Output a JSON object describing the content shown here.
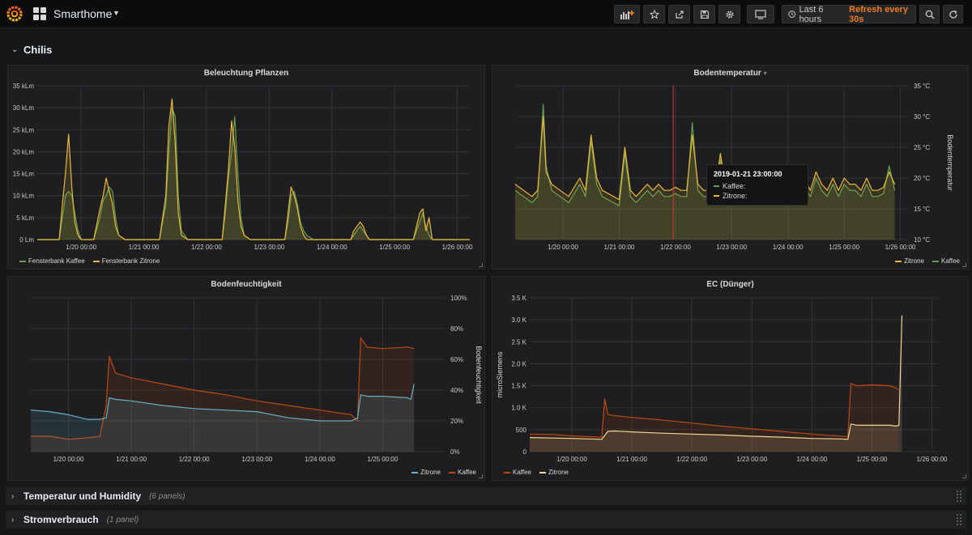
{
  "header": {
    "dashboard_title": "Smarthome",
    "time_range": "Last 6 hours",
    "refresh": "Refresh every 30s"
  },
  "rows": {
    "chilis": {
      "title": "Chilis"
    },
    "temperatur": {
      "title": "Temperatur und Humidity",
      "count": "(6 panels)"
    },
    "strom": {
      "title": "Stromverbrauch",
      "count": "(1 panel)"
    }
  },
  "colors": {
    "yellow": "#eab839",
    "green": "#629e51",
    "orange": "#ba4a10",
    "blue": "#64b0c8",
    "cream": "#f4d598",
    "accent": "#eb7b18"
  },
  "tooltip": {
    "time": "2019-01-21 23:00:00",
    "rows": [
      {
        "label": "Kaffee:",
        "color": "#629e51"
      },
      {
        "label": "Zitrone:",
        "color": "#eab839"
      }
    ]
  },
  "chart_data": [
    {
      "id": "licht",
      "type": "area",
      "title": "Beleuchtung Pflanzen",
      "x_ticks": [
        "1/20 00:00",
        "1/21 00:00",
        "1/22 00:00",
        "1/23 00:00",
        "1/24 00:00",
        "1/25 00:00",
        "1/26 00:00"
      ],
      "y_ticks": [
        "0 Lm",
        "5 kLm",
        "10 kLm",
        "15 kLm",
        "20 kLm",
        "25 kLm",
        "30 kLm",
        "35 kLm"
      ],
      "ylim": [
        0,
        35
      ],
      "xlim": [
        -0.7,
        6.2
      ],
      "legend": [
        "Fensterbank Kaffee",
        "Fensterbank Zitrone"
      ],
      "series": [
        {
          "name": "Fensterbank Kaffee",
          "color": "#629e51",
          "x": [
            -0.7,
            -0.35,
            -0.3,
            -0.25,
            -0.2,
            -0.15,
            -0.1,
            -0.05,
            0.0,
            0.2,
            0.3,
            0.35,
            0.4,
            0.45,
            0.5,
            0.55,
            0.6,
            0.7,
            1.25,
            1.35,
            1.4,
            1.45,
            1.5,
            1.55,
            1.6,
            1.7,
            2.25,
            2.3,
            2.35,
            2.4,
            2.45,
            2.5,
            2.55,
            2.6,
            2.7,
            3.25,
            3.3,
            3.35,
            3.4,
            3.45,
            3.5,
            3.55,
            3.6,
            3.7,
            4.3,
            4.35,
            4.4,
            4.45,
            4.5,
            4.55,
            4.6,
            4.7,
            5.3,
            5.35,
            5.4,
            5.45,
            5.5,
            5.55,
            5.6,
            5.7,
            6.2
          ],
          "y": [
            0,
            0,
            5,
            10,
            11,
            10,
            6,
            2,
            0,
            0,
            5,
            9,
            10,
            12,
            11,
            5,
            1,
            0,
            0,
            8,
            20,
            30,
            28,
            10,
            2,
            0,
            0,
            6,
            14,
            20,
            28,
            15,
            5,
            1,
            0,
            0,
            4,
            10,
            11,
            8,
            4,
            2,
            1,
            0,
            0,
            1,
            2,
            3,
            2,
            1,
            0,
            0,
            0,
            2,
            4,
            6,
            3,
            1,
            0,
            0,
            0
          ]
        },
        {
          "name": "Fensterbank Zitrone",
          "color": "#eab839",
          "x": [
            -0.7,
            -0.35,
            -0.3,
            -0.25,
            -0.2,
            -0.15,
            -0.1,
            -0.05,
            0.0,
            0.2,
            0.3,
            0.35,
            0.4,
            0.45,
            0.5,
            0.55,
            0.6,
            0.7,
            1.25,
            1.35,
            1.4,
            1.45,
            1.5,
            1.55,
            1.6,
            1.7,
            2.25,
            2.3,
            2.35,
            2.4,
            2.45,
            2.5,
            2.55,
            2.6,
            2.7,
            3.25,
            3.3,
            3.35,
            3.4,
            3.45,
            3.5,
            3.55,
            3.6,
            3.7,
            4.3,
            4.35,
            4.4,
            4.45,
            4.5,
            4.55,
            4.6,
            4.7,
            5.3,
            5.35,
            5.4,
            5.45,
            5.5,
            5.55,
            5.6,
            5.7,
            6.2
          ],
          "y": [
            0,
            0,
            8,
            15,
            24,
            12,
            4,
            1,
            0,
            0,
            7,
            10,
            14,
            11,
            8,
            3,
            1,
            0,
            0,
            10,
            26,
            32,
            22,
            6,
            1,
            0,
            0,
            8,
            16,
            27,
            21,
            9,
            3,
            1,
            0,
            0,
            6,
            12,
            10,
            7,
            3,
            1,
            0,
            0,
            0,
            2,
            3,
            4,
            3,
            1,
            0,
            0,
            0,
            3,
            6,
            7,
            2,
            5,
            0,
            0,
            0
          ]
        }
      ]
    },
    {
      "id": "bodentemp",
      "type": "area",
      "title": "Bodentemperatur",
      "ylabel": "Bodentemperatur",
      "x_ticks": [
        "1/20 00:00",
        "1/21 00:00",
        "1/22 00:00",
        "1/23 00:00",
        "1/24 00:00",
        "1/25 00:00",
        "1/26 00:00"
      ],
      "y_ticks": [
        "10 °C",
        "15 °C",
        "20 °C",
        "25 °C",
        "30 °C",
        "35 °C"
      ],
      "ylim": [
        10,
        35
      ],
      "xlim": [
        -0.85,
        6.15
      ],
      "legend": [
        "Zitrone",
        "Kaffee"
      ],
      "crosshair_x": 1.96,
      "series": [
        {
          "name": "Kaffee",
          "color": "#629e51",
          "x": [
            -0.85,
            -0.7,
            -0.55,
            -0.45,
            -0.35,
            -0.3,
            -0.2,
            -0.05,
            0.1,
            0.3,
            0.4,
            0.5,
            0.6,
            0.7,
            0.9,
            1.0,
            1.1,
            1.2,
            1.3,
            1.4,
            1.5,
            1.6,
            1.7,
            1.8,
            1.9,
            2.0,
            2.1,
            2.2,
            2.3,
            2.4,
            2.5,
            2.6,
            2.7,
            2.8,
            2.9,
            3.0,
            3.1,
            3.2,
            3.3,
            3.4,
            3.5,
            3.6,
            3.7,
            3.8,
            3.9,
            4.0,
            4.1,
            4.2,
            4.3,
            4.4,
            4.5,
            4.6,
            4.7,
            4.8,
            4.9,
            5.0,
            5.1,
            5.2,
            5.3,
            5.4,
            5.5,
            5.6,
            5.7,
            5.8,
            5.9
          ],
          "y": [
            18,
            17,
            16,
            17,
            32,
            22,
            18,
            17,
            16,
            19,
            17,
            26,
            19,
            17,
            16,
            15.5,
            24,
            17,
            16,
            17,
            18,
            17,
            18,
            17,
            17,
            17.5,
            17,
            17,
            29,
            18,
            17,
            17,
            16.5,
            23,
            17,
            17,
            18,
            17,
            19,
            18,
            18,
            17,
            18,
            17,
            19,
            17,
            18,
            17,
            18.5,
            17,
            20,
            18,
            17,
            19,
            17,
            19,
            18,
            18,
            17,
            19,
            17,
            17,
            17.5,
            22,
            18
          ]
        },
        {
          "name": "Zitrone",
          "color": "#eab839",
          "x": [
            -0.85,
            -0.7,
            -0.55,
            -0.45,
            -0.35,
            -0.3,
            -0.2,
            -0.05,
            0.1,
            0.3,
            0.4,
            0.5,
            0.6,
            0.7,
            0.9,
            1.0,
            1.1,
            1.2,
            1.3,
            1.4,
            1.5,
            1.6,
            1.7,
            1.8,
            1.9,
            2.0,
            2.1,
            2.2,
            2.3,
            2.4,
            2.5,
            2.6,
            2.7,
            2.8,
            2.9,
            3.0,
            3.1,
            3.2,
            3.3,
            3.4,
            3.5,
            3.6,
            3.7,
            3.8,
            3.9,
            4.0,
            4.1,
            4.2,
            4.3,
            4.4,
            4.5,
            4.6,
            4.7,
            4.8,
            4.9,
            5.0,
            5.1,
            5.2,
            5.3,
            5.4,
            5.5,
            5.6,
            5.7,
            5.8,
            5.9
          ],
          "y": [
            19,
            18,
            17,
            18,
            30,
            21,
            19,
            18,
            17,
            20,
            18,
            27,
            20,
            18,
            17,
            16.5,
            25,
            18,
            17,
            18,
            19,
            18,
            19,
            18,
            18,
            18.5,
            18,
            18,
            27,
            19,
            18,
            18,
            17.5,
            24,
            18,
            18,
            19,
            18,
            20,
            19,
            19,
            18,
            19,
            18,
            21,
            18,
            19,
            18,
            19.5,
            18,
            21,
            19,
            18,
            20,
            18,
            20,
            19,
            19,
            18,
            20,
            18,
            18,
            18.5,
            21,
            19
          ]
        }
      ]
    },
    {
      "id": "feuchte",
      "type": "area",
      "title": "Bodenfeuchtigkeit",
      "ylabel": "Bodenfeuchtigkeit",
      "x_ticks": [
        "1/20 00:00",
        "1/21 00:00",
        "1/22 00:00",
        "1/23 00:00",
        "1/24 00:00",
        "1/25 00:00"
      ],
      "y_ticks": [
        "0%",
        "20%",
        "40%",
        "60%",
        "80%",
        "100%"
      ],
      "ylim": [
        0,
        100
      ],
      "xlim": [
        -0.6,
        6.0
      ],
      "legend": [
        "Zitrone",
        "Kaffee"
      ],
      "series": [
        {
          "name": "Kaffee",
          "color": "#ba4a10",
          "x": [
            -0.6,
            -0.3,
            0.0,
            0.3,
            0.5,
            0.6,
            0.65,
            0.75,
            1.0,
            1.5,
            2.0,
            2.5,
            3.0,
            3.5,
            4.0,
            4.5,
            4.6,
            4.65,
            4.75,
            5.0,
            5.4,
            5.5
          ],
          "y": [
            10,
            10,
            8,
            9,
            10,
            30,
            62,
            51,
            48,
            44,
            40,
            37,
            33,
            30,
            27,
            24,
            20,
            74,
            68,
            67,
            68,
            67
          ]
        },
        {
          "name": "Zitrone",
          "color": "#64b0c8",
          "x": [
            -0.6,
            -0.3,
            0.0,
            0.3,
            0.5,
            0.6,
            0.65,
            0.75,
            1.0,
            1.5,
            2.0,
            2.5,
            3.0,
            3.5,
            4.0,
            4.5,
            4.6,
            4.65,
            4.75,
            5.0,
            5.4,
            5.45,
            5.5
          ],
          "y": [
            27,
            26,
            24,
            21,
            21,
            22,
            35,
            34,
            33,
            30,
            28,
            27,
            26,
            22,
            20,
            20,
            22,
            37,
            36,
            36,
            35,
            34,
            44
          ]
        }
      ]
    },
    {
      "id": "ec",
      "type": "area",
      "title": "EC (Dünger)",
      "ylabel": "microSiemens",
      "x_ticks": [
        "1/20 00:00",
        "1/21 00:00",
        "1/22 00:00",
        "1/23 00:00",
        "1/24 00:00",
        "1/25 00:00",
        "1/26 00:00"
      ],
      "y_ticks": [
        "0",
        "500",
        "1.0 K",
        "1.5 K",
        "2.0 K",
        "2.5 K",
        "3.0 K",
        "3.5 K"
      ],
      "ylim": [
        0,
        3500
      ],
      "xlim": [
        -0.7,
        6.1
      ],
      "legend": [
        "Kaffee",
        "Zitrone"
      ],
      "series": [
        {
          "name": "Kaffee",
          "color": "#ba4a10",
          "x": [
            -0.7,
            -0.3,
            0.0,
            0.3,
            0.5,
            0.55,
            0.6,
            0.7,
            1.0,
            1.5,
            2.0,
            2.5,
            3.0,
            3.5,
            4.0,
            4.5,
            4.6,
            4.65,
            4.75,
            5.0,
            5.3,
            5.4,
            5.45
          ],
          "y": [
            400,
            390,
            360,
            340,
            330,
            1200,
            850,
            820,
            780,
            720,
            650,
            580,
            520,
            460,
            400,
            350,
            340,
            1550,
            1500,
            1520,
            1500,
            1450,
            1400
          ]
        },
        {
          "name": "Zitrone",
          "color": "#f4d598",
          "x": [
            -0.7,
            -0.3,
            0.0,
            0.3,
            0.5,
            0.6,
            0.7,
            1.0,
            1.5,
            2.0,
            2.5,
            3.0,
            3.5,
            4.0,
            4.5,
            4.6,
            4.65,
            4.75,
            5.0,
            5.3,
            5.4,
            5.45,
            5.5
          ],
          "y": [
            320,
            310,
            300,
            290,
            280,
            460,
            470,
            450,
            420,
            400,
            380,
            350,
            330,
            300,
            290,
            280,
            630,
            600,
            600,
            600,
            580,
            600,
            3100
          ]
        }
      ]
    }
  ]
}
